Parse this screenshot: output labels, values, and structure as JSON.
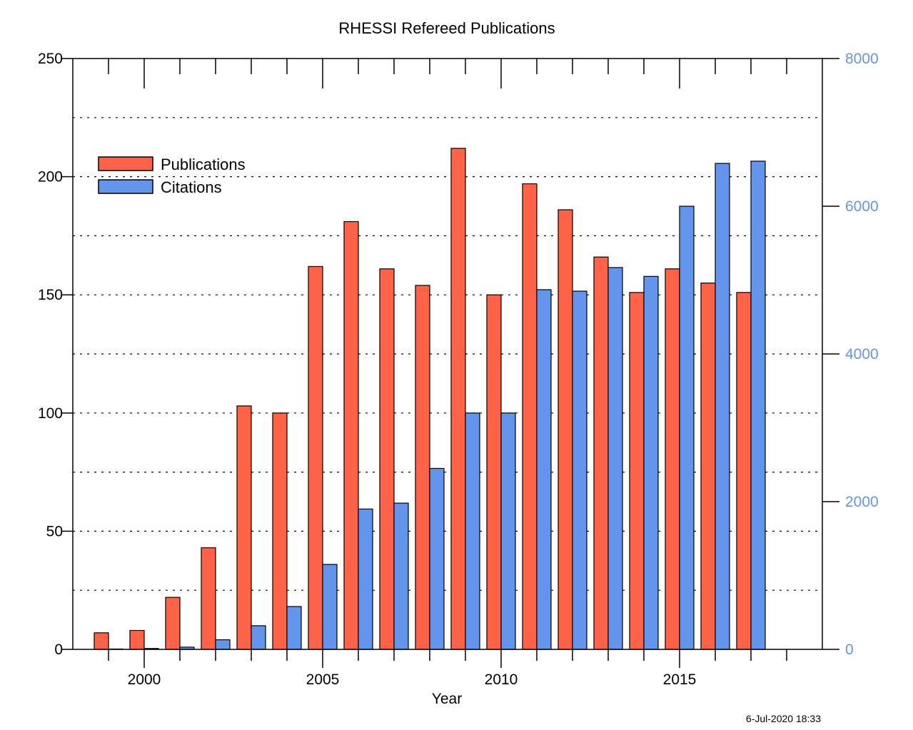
{
  "chart_data": {
    "type": "bar",
    "title": "RHESSI Refereed Publications",
    "xlabel": "Year",
    "ylabel": "",
    "ylabel_right": "",
    "x": [
      1999,
      2000,
      2001,
      2002,
      2003,
      2004,
      2005,
      2006,
      2007,
      2008,
      2009,
      2010,
      2011,
      2012,
      2013,
      2014,
      2015,
      2016,
      2017
    ],
    "xlim": [
      1998,
      2019
    ],
    "x_ticks": [
      "2000",
      "2005",
      "2010",
      "2015"
    ],
    "x_tick_values": [
      2000,
      2005,
      2010,
      2015
    ],
    "ylim": [
      0,
      250
    ],
    "y_ticks": [
      "0",
      "50",
      "100",
      "150",
      "200",
      "250"
    ],
    "y_tick_values": [
      0,
      50,
      100,
      150,
      200,
      250
    ],
    "ylim_right": [
      0,
      8000
    ],
    "y_ticks_right": [
      "0",
      "2000",
      "4000",
      "6000",
      "8000"
    ],
    "y_tick_values_right": [
      0,
      2000,
      4000,
      6000,
      8000
    ],
    "grid": "horizontal dotted",
    "legend_position": "top-left",
    "series": [
      {
        "name": "Publications",
        "axis": "left",
        "color": "#ff6347",
        "values": [
          7,
          8,
          22,
          43,
          103,
          100,
          162,
          181,
          161,
          154,
          212,
          150,
          197,
          186,
          166,
          151,
          161,
          155,
          151
        ]
      },
      {
        "name": "Citations",
        "axis": "right",
        "color": "#6495ed",
        "values": [
          5,
          12,
          30,
          130,
          320,
          580,
          1150,
          1900,
          1980,
          2450,
          3200,
          3200,
          4870,
          4850,
          5170,
          5050,
          6000,
          6580,
          6610
        ]
      }
    ]
  },
  "timestamp": "6-Jul-2020 18:33",
  "colors": {
    "right_axis": "#6495ed"
  }
}
